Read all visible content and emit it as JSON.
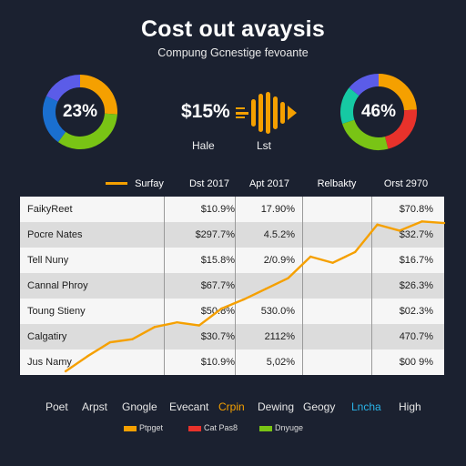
{
  "header": {
    "title": "Cost out avaysis",
    "subtitle": "Compung Gcnestige fevoante"
  },
  "colors": {
    "background": "#1b2130",
    "blue": "#5b5ce8",
    "orange": "#f5a000",
    "green": "#79c415",
    "teal": "#16c9a3",
    "red": "#e8322b",
    "line": "#f5a000",
    "cyan_label": "#2ab4e8"
  },
  "kpis": {
    "left_donut": {
      "label": "23%",
      "segments": [
        {
          "color": "#f5a000",
          "fraction": 0.26
        },
        {
          "color": "#79c415",
          "fraction": 0.34
        },
        {
          "color": "#1a6fd0",
          "fraction": 0.22
        },
        {
          "color": "#5b5ce8",
          "fraction": 0.18
        }
      ]
    },
    "center_value": "$15%",
    "center_sub_left": "Hale",
    "center_sub_right": "Lst",
    "wave_icon": "waveform-icon",
    "right_donut": {
      "label": "46%",
      "segments": [
        {
          "color": "#f5a000",
          "fraction": 0.24
        },
        {
          "color": "#e8322b",
          "fraction": 0.22
        },
        {
          "color": "#79c415",
          "fraction": 0.24
        },
        {
          "color": "#16c9a3",
          "fraction": 0.16
        },
        {
          "color": "#5b5ce8",
          "fraction": 0.14
        }
      ]
    }
  },
  "table": {
    "headers": [
      "Surfay",
      "Dst 2017",
      "Apt 2017",
      "Relbakty",
      "Orst 2970"
    ],
    "rows": [
      {
        "label": "FaikyReet",
        "c1": "$10.9%",
        "c2": "17.90%",
        "c4": "$70.8%"
      },
      {
        "label": "Pocre Nates",
        "c1": "$297.7%",
        "c2": "4.5.2%",
        "c4": "$32.7%"
      },
      {
        "label": "Tell Nuny",
        "c1": "$15.8%",
        "c2": "2/0.9%",
        "c4": "$16.7%"
      },
      {
        "label": "Cannal Phroy",
        "c1": "$67.7%",
        "c2": "",
        "c4": "$26.3%"
      },
      {
        "label": "Toung Stieny",
        "c1": "$50.8%",
        "c2": "530.0%",
        "c4": "$02.3%"
      },
      {
        "label": "Calgatiry",
        "c1": "$30.7%",
        "c2": "2112%",
        "c4": "470.7%"
      },
      {
        "label": "Jus Namy",
        "c1": "$10.9%",
        "c2": "5,02%",
        "c4": "$00 9%"
      }
    ]
  },
  "chart_data": {
    "type": "line",
    "title": "Cost out avaysis",
    "series": [
      {
        "name": "Surfay",
        "x": [
          0,
          1,
          2,
          3,
          4,
          5,
          6,
          7,
          8,
          9,
          10,
          11,
          12,
          13,
          14,
          15,
          16,
          17
        ],
        "values": [
          0,
          10,
          19,
          21,
          29,
          32,
          30,
          41,
          47,
          54,
          61,
          75,
          71,
          78,
          96,
          92,
          98,
          97
        ]
      }
    ],
    "ylim": [
      0,
      100
    ],
    "grid": false,
    "legend": "top-left"
  },
  "legend": {
    "items": [
      "Poet",
      "Arpst",
      "Gnogle",
      "Evecant",
      "Crpin",
      "Dewing",
      "Geogy",
      "Lncha",
      "High"
    ],
    "swatches": [
      {
        "label": "Ptpget",
        "color": "#f5a000"
      },
      {
        "label": "Cat Pas8",
        "color": "#e8322b"
      },
      {
        "label": "Dnyuge",
        "color": "#79c415"
      }
    ]
  }
}
